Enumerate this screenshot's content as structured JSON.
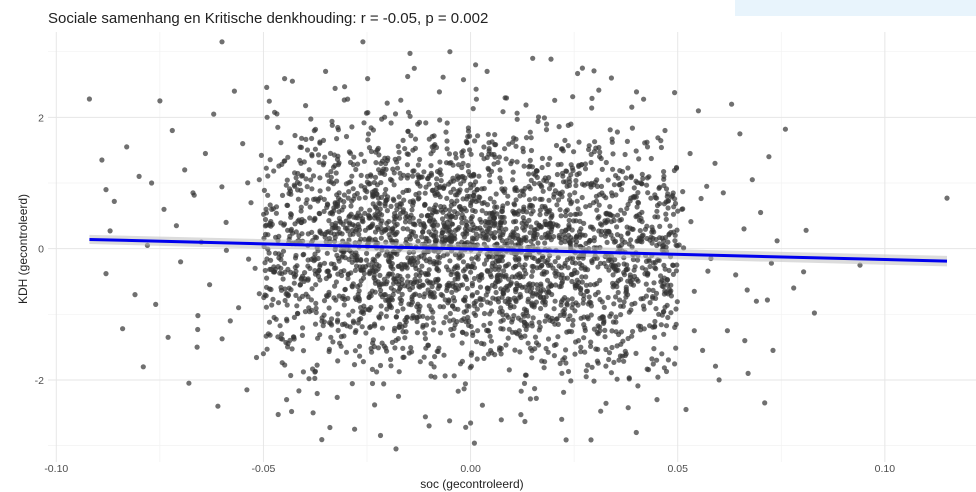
{
  "chart_data": {
    "type": "scatter",
    "title": "Sociale samenhang en Kritische denkhouding: r = -0.05, p = 0.002",
    "xlabel": "soc (gecontroleerd)",
    "ylabel": "KDH (gecontroleerd)",
    "xlim": [
      -0.102,
      0.122
    ],
    "ylim": [
      -3.25,
      3.3
    ],
    "x_ticks": [
      -0.1,
      -0.05,
      0.0,
      0.05,
      0.1
    ],
    "x_tick_labels": [
      "-0.10",
      "-0.05",
      "0.00",
      "0.05",
      "0.10"
    ],
    "y_ticks": [
      -2,
      0,
      2
    ],
    "y_tick_labels": [
      "-2",
      "0",
      "2"
    ],
    "grid": true,
    "legend": "none",
    "point_color": "#333333",
    "point_opacity": 0.7,
    "line_color": "#0000ee",
    "band_color": "#bfbfbf",
    "regression_line": {
      "x": [
        -0.092,
        0.115
      ],
      "y": [
        0.14,
        -0.19
      ],
      "ci_halfwidth": [
        0.07,
        0.08
      ]
    },
    "points": [
      [
        -0.092,
        2.28
      ],
      [
        -0.089,
        1.35
      ],
      [
        -0.088,
        0.9
      ],
      [
        -0.087,
        0.27
      ],
      [
        -0.088,
        -0.38
      ],
      [
        -0.086,
        0.72
      ],
      [
        -0.084,
        -1.22
      ],
      [
        -0.083,
        1.55
      ],
      [
        -0.081,
        -0.7
      ],
      [
        -0.08,
        1.1
      ],
      [
        -0.079,
        -1.8
      ],
      [
        -0.078,
        0.05
      ],
      [
        -0.077,
        1.0
      ],
      [
        -0.076,
        -0.85
      ],
      [
        -0.075,
        2.25
      ],
      [
        -0.074,
        0.6
      ],
      [
        -0.073,
        -1.35
      ],
      [
        -0.072,
        1.8
      ],
      [
        -0.071,
        0.35
      ],
      [
        -0.07,
        -0.2
      ],
      [
        -0.069,
        1.2
      ],
      [
        -0.068,
        -2.05
      ],
      [
        -0.067,
        0.85
      ],
      [
        -0.066,
        -1.5
      ],
      [
        -0.065,
        0.1
      ],
      [
        -0.064,
        1.45
      ],
      [
        -0.063,
        -0.55
      ],
      [
        -0.062,
        2.05
      ],
      [
        -0.061,
        -2.4
      ],
      [
        -0.06,
        3.15
      ],
      [
        -0.059,
        0.4
      ],
      [
        -0.058,
        -1.1
      ],
      [
        -0.057,
        2.4
      ],
      [
        -0.056,
        -0.9
      ],
      [
        -0.055,
        1.6
      ],
      [
        -0.054,
        -2.15
      ],
      [
        -0.053,
        0.7
      ],
      [
        -0.052,
        -0.3
      ],
      [
        -0.051,
        1.05
      ],
      [
        -0.05,
        -1.6
      ],
      [
        0.115,
        0.77
      ],
      [
        0.094,
        -0.25
      ],
      [
        0.083,
        -0.98
      ],
      [
        0.081,
        0.28
      ],
      [
        0.078,
        -0.6
      ],
      [
        0.076,
        1.82
      ],
      [
        0.074,
        0.12
      ],
      [
        0.073,
        -1.55
      ],
      [
        0.072,
        1.4
      ],
      [
        0.071,
        -2.35
      ],
      [
        0.07,
        0.55
      ],
      [
        0.069,
        -0.8
      ],
      [
        0.068,
        1.05
      ],
      [
        0.067,
        -1.9
      ],
      [
        0.066,
        0.3
      ],
      [
        0.065,
        1.75
      ],
      [
        0.064,
        -0.4
      ],
      [
        0.063,
        2.2
      ],
      [
        0.062,
        -1.25
      ],
      [
        0.061,
        0.85
      ],
      [
        0.06,
        -2.0
      ],
      [
        0.059,
        1.3
      ],
      [
        0.058,
        -0.15
      ],
      [
        0.057,
        0.95
      ],
      [
        0.056,
        -1.55
      ],
      [
        0.055,
        2.1
      ],
      [
        0.054,
        -0.65
      ],
      [
        0.053,
        1.45
      ],
      [
        0.052,
        -2.45
      ],
      [
        0.051,
        0.6
      ],
      [
        -0.018,
        -3.05
      ],
      [
        -0.028,
        -2.75
      ],
      [
        0.04,
        -2.8
      ],
      [
        -0.026,
        3.15
      ],
      [
        -0.005,
        3.0
      ],
      [
        0.015,
        2.9
      ],
      [
        -0.035,
        2.7
      ],
      [
        0.027,
        2.75
      ],
      [
        -0.043,
        2.55
      ],
      [
        0.034,
        2.6
      ],
      [
        -0.01,
        -2.7
      ],
      [
        0.022,
        -2.6
      ],
      [
        -0.038,
        -2.5
      ],
      [
        0.045,
        -2.3
      ],
      [
        0.004,
        2.7
      ]
    ],
    "cloud": {
      "count": 3000,
      "x_center": 0.0,
      "x_halfrange": 0.05,
      "y_sd": 0.95,
      "slope": -1.6,
      "intercept": -0.005
    }
  }
}
